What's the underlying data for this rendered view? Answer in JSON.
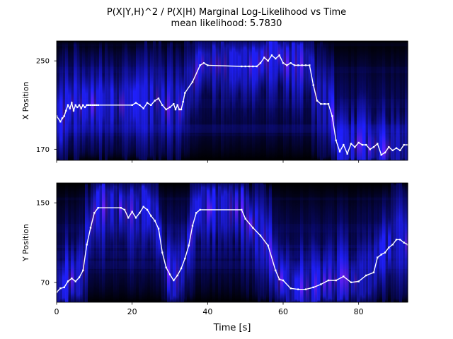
{
  "figure": {
    "title": "P(X|Y,H)^2 / P(X|H) Marginal Log-Likelihood vs Time",
    "subtitle": "mean likelihood: 5.7830",
    "xlabel": "Time [s]"
  },
  "chart_data": [
    {
      "type": "heatmap",
      "ylabel": "X Position",
      "xlim": [
        0,
        93
      ],
      "ylim": [
        160,
        268
      ],
      "yticks": [
        {
          "value": 250,
          "label": "250"
        },
        {
          "value": 170,
          "label": "170"
        }
      ],
      "xticks": [
        0,
        20,
        40,
        60,
        80
      ],
      "xtick_labels_visible": false,
      "colormap": [
        "#000000",
        "#0a0a80",
        "#2020ff",
        "#6a20ff",
        "#d040ff"
      ],
      "series": [
        {
          "kind": "trajectory",
          "color": "#ffffff",
          "x": [
            0.0,
            1.0,
            1.5,
            2.0,
            2.5,
            3.0,
            3.5,
            4.0,
            4.5,
            5.0,
            5.5,
            6.0,
            6.5,
            7.0,
            7.5,
            8.0,
            8.5,
            9.0,
            9.5,
            10.0,
            10.5,
            11.0,
            20.0,
            21.0,
            22.0,
            23.0,
            24.0,
            25.0,
            26.0,
            27.0,
            28.0,
            29.0,
            30.0,
            31.0,
            31.5,
            32.0,
            32.5,
            33.0,
            33.5,
            34.0,
            36.0,
            38.0,
            39.0,
            40.0,
            49.0,
            50.0,
            51.0,
            52.0,
            53.0,
            54.0,
            55.0,
            56.0,
            57.0,
            58.0,
            59.0,
            60.0,
            61.0,
            62.0,
            63.0,
            64.0,
            65.0,
            66.0,
            67.0,
            68.0,
            69.0,
            70.0,
            71.0,
            72.0,
            73.0,
            74.0,
            75.0,
            76.0,
            77.0,
            78.0,
            79.0,
            80.0,
            81.0,
            82.0,
            83.0,
            84.0,
            85.0,
            86.0,
            87.0,
            88.0,
            89.0,
            90.0,
            91.0,
            92.0,
            93.0
          ],
          "y": [
            200,
            195,
            198,
            200,
            205,
            210,
            207,
            212,
            205,
            210,
            208,
            210,
            207,
            210,
            208,
            210,
            210,
            210,
            210,
            210,
            210,
            210,
            210,
            212,
            210,
            207,
            212,
            210,
            214,
            216,
            210,
            206,
            208,
            211,
            206,
            210,
            206,
            206,
            213,
            221,
            231,
            246,
            248,
            246,
            245,
            245,
            245,
            245,
            245,
            248,
            253,
            250,
            255,
            252,
            255,
            248,
            246,
            248,
            246,
            246,
            246,
            246,
            246,
            228,
            214,
            211,
            211,
            211,
            200,
            178,
            168,
            174,
            166,
            175,
            172,
            176,
            174,
            174,
            170,
            172,
            175,
            165,
            167,
            172,
            169,
            171,
            169,
            174,
            174
          ]
        }
      ]
    },
    {
      "type": "heatmap",
      "ylabel": "Y Position",
      "xlim": [
        0,
        93
      ],
      "ylim": [
        50,
        170
      ],
      "yticks": [
        {
          "value": 150,
          "label": "150"
        },
        {
          "value": 70,
          "label": "70"
        }
      ],
      "xticks": [
        0,
        20,
        40,
        60,
        80
      ],
      "xtick_labels": [
        "0",
        "20",
        "40",
        "60",
        "80"
      ],
      "colormap": [
        "#000000",
        "#0a0a80",
        "#2020ff",
        "#6a20ff",
        "#d040ff"
      ],
      "series": [
        {
          "kind": "trajectory",
          "color": "#ffffff",
          "x": [
            0.0,
            1.0,
            2.0,
            3.0,
            4.0,
            5.0,
            6.0,
            7.0,
            8.0,
            9.0,
            10.0,
            11.0,
            17.0,
            18.0,
            19.0,
            20.0,
            21.0,
            22.0,
            23.0,
            24.0,
            25.0,
            26.0,
            27.0,
            28.0,
            29.0,
            30.0,
            31.0,
            32.0,
            33.0,
            34.0,
            35.0,
            36.0,
            37.0,
            38.0,
            49.0,
            50.0,
            52.0,
            54.0,
            56.0,
            58.0,
            59.0,
            60.0,
            62.0,
            64.0,
            66.0,
            68.0,
            70.0,
            72.0,
            74.0,
            76.0,
            78.0,
            80.0,
            82.0,
            84.0,
            85.0,
            86.0,
            87.0,
            88.0,
            89.0,
            90.0,
            91.0,
            92.0,
            93.0
          ],
          "y": [
            60,
            64,
            65,
            71,
            74,
            71,
            75,
            82,
            108,
            125,
            140,
            145,
            145,
            143,
            135,
            141,
            135,
            140,
            146,
            143,
            137,
            132,
            124,
            100,
            85,
            78,
            72,
            77,
            84,
            94,
            107,
            127,
            140,
            143,
            143,
            134,
            125,
            117,
            107,
            82,
            73,
            72,
            64,
            63,
            63,
            65,
            68,
            72,
            72,
            76,
            70,
            71,
            77,
            80,
            95,
            98,
            100,
            105,
            108,
            113,
            113,
            110,
            108
          ]
        }
      ]
    }
  ]
}
